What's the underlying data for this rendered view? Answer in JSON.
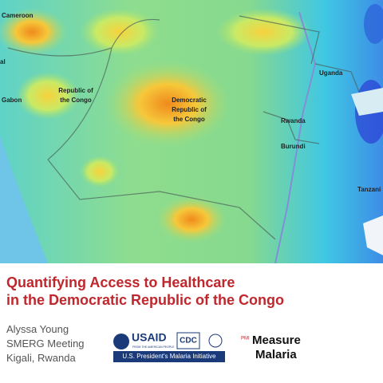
{
  "map": {
    "labels": [
      {
        "lines": [
          "Cameroon"
        ]
      },
      {
        "lines": [
          "al"
        ]
      },
      {
        "lines": [
          "Gabon"
        ]
      },
      {
        "lines": [
          "Republic of",
          "the Congo"
        ]
      },
      {
        "lines": [
          "Democratic",
          "Republic of",
          "the Congo"
        ]
      },
      {
        "lines": [
          "Uganda"
        ]
      },
      {
        "lines": [
          "Rwanda"
        ]
      },
      {
        "lines": [
          "Burundi"
        ]
      },
      {
        "lines": [
          "Tanzani"
        ]
      }
    ]
  },
  "title": [
    "Quantifying Access to Healthcare",
    "in the Democratic Republic of the Congo"
  ],
  "author": [
    "Alyssa Young",
    "SMERG Meeting",
    "Kigali, Rwanda"
  ],
  "logos": {
    "usaid": "USAID",
    "usaid_tagline": "FROM THE AMERICAN PEOPLE",
    "cdc": "CDC",
    "pmi_bar": "U.S. President's Malaria Initiative",
    "pmi": "PMI",
    "measure": "Measure",
    "malaria": "Malaria"
  }
}
